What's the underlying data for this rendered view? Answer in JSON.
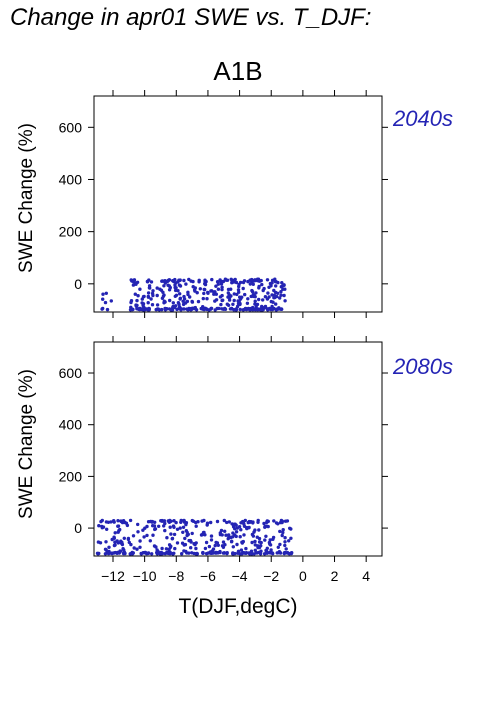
{
  "title": "Change in apr01 SWE vs. T_DJF:",
  "scenario": "A1B",
  "xlabel": "T(DJF,degC)",
  "ylabel": "SWE Change (%)",
  "colors": {
    "points": "#2424b4",
    "period_label": "#2424b4",
    "axes": "#000000"
  },
  "chart_data": [
    {
      "type": "scatter",
      "panel_label": "2040s",
      "xlim": [
        -13.2,
        5.0
      ],
      "ylim": [
        -108,
        720
      ],
      "xticks": [
        -12,
        -10,
        -8,
        -6,
        -4,
        -2,
        0,
        2,
        4
      ],
      "yticks": [
        0,
        200,
        400,
        600
      ],
      "grid": false,
      "description_of_clusters": [
        {
          "x_range": [
            -10.9,
            -1.1
          ],
          "y_range": [
            -100,
            18
          ],
          "count": 420
        },
        {
          "x_range": [
            -12.8,
            -12.0
          ],
          "y_range": [
            -100,
            -35
          ],
          "count": 8
        }
      ]
    },
    {
      "type": "scatter",
      "panel_label": "2080s",
      "xlim": [
        -13.2,
        5.0
      ],
      "ylim": [
        -108,
        720
      ],
      "xticks": [
        -12,
        -10,
        -8,
        -6,
        -4,
        -2,
        0,
        2,
        4
      ],
      "yticks": [
        0,
        200,
        400,
        600
      ],
      "grid": false,
      "description_of_clusters": [
        {
          "x_range": [
            -13.0,
            -0.7
          ],
          "y_range": [
            -100,
            30
          ],
          "count": 430
        }
      ]
    }
  ]
}
